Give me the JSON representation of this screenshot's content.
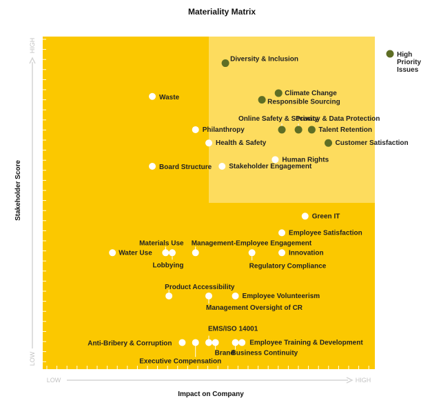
{
  "chart_data": {
    "type": "scatter",
    "title": "Materiality Matrix",
    "xlabel": "Impact on Company",
    "ylabel": "Stakeholder Score",
    "x_low": "LOW",
    "x_high": "HIGH",
    "y_low": "LOW",
    "y_high": "HIGH",
    "xlim": [
      0,
      10
    ],
    "ylim": [
      0,
      10
    ],
    "high_priority_region": {
      "x_min": 5.0,
      "y_min": 5.0
    },
    "colors": {
      "background": "#fbc800",
      "priority_region": "#fddc5e",
      "high_priority_dot": "#5e6e25",
      "standard_dot": "#ffffff"
    },
    "legend": {
      "label": "High Priority Issues",
      "placement": "top-right"
    },
    "points": [
      {
        "name": "Diversity & Inclusion",
        "x": 5.5,
        "y": 9.2,
        "priority": true
      },
      {
        "name": "Climate Change",
        "x": 7.1,
        "y": 8.3,
        "priority": true
      },
      {
        "name": "Responsible Sourcing",
        "x": 6.6,
        "y": 8.1,
        "priority": true
      },
      {
        "name": "Online Safety & Security",
        "x": 7.2,
        "y": 7.2,
        "priority": true
      },
      {
        "name": "Privacy & Data Protection",
        "x": 7.7,
        "y": 7.2,
        "priority": true
      },
      {
        "name": "Talent Retention",
        "x": 8.1,
        "y": 7.2,
        "priority": true
      },
      {
        "name": "Customer Satisfaction",
        "x": 8.6,
        "y": 6.8,
        "priority": true
      },
      {
        "name": "Waste",
        "x": 3.3,
        "y": 8.2,
        "priority": false
      },
      {
        "name": "Philanthropy",
        "x": 4.6,
        "y": 7.2,
        "priority": false
      },
      {
        "name": "Health & Safety",
        "x": 5.0,
        "y": 6.8,
        "priority": false
      },
      {
        "name": "Human Rights",
        "x": 7.0,
        "y": 6.3,
        "priority": false
      },
      {
        "name": "Board Structure",
        "x": 3.3,
        "y": 6.1,
        "priority": false
      },
      {
        "name": "Stakeholder Engagement",
        "x": 5.4,
        "y": 6.1,
        "priority": false
      },
      {
        "name": "Green IT",
        "x": 7.9,
        "y": 4.6,
        "priority": false
      },
      {
        "name": "Employee Satisfaction",
        "x": 7.2,
        "y": 4.1,
        "priority": false
      },
      {
        "name": "Water Use",
        "x": 2.1,
        "y": 3.5,
        "priority": false
      },
      {
        "name": "Materials Use",
        "x": 3.7,
        "y": 3.5,
        "priority": false
      },
      {
        "name": "Lobbying",
        "x": 3.9,
        "y": 3.5,
        "priority": false
      },
      {
        "name": "Management-Employee Engagement",
        "x": 4.6,
        "y": 3.5,
        "priority": false
      },
      {
        "name": "Regulatory Compliance",
        "x": 6.3,
        "y": 3.5,
        "priority": false
      },
      {
        "name": "Innovation",
        "x": 7.2,
        "y": 3.5,
        "priority": false
      },
      {
        "name": "Product Accessibility",
        "x": 3.8,
        "y": 2.2,
        "priority": false
      },
      {
        "name": "Management Oversight of CR",
        "x": 5.0,
        "y": 2.2,
        "priority": false
      },
      {
        "name": "Employee Volunteerism",
        "x": 5.8,
        "y": 2.2,
        "priority": false
      },
      {
        "name": "Anti-Bribery & Corruption",
        "x": 4.2,
        "y": 0.8,
        "priority": false
      },
      {
        "name": "Executive Compensation",
        "x": 4.6,
        "y": 0.8,
        "priority": false
      },
      {
        "name": "EMS/ISO 14001",
        "x": 5.0,
        "y": 0.8,
        "priority": false
      },
      {
        "name": "Brand",
        "x": 5.2,
        "y": 0.8,
        "priority": false
      },
      {
        "name": "Business Continuity",
        "x": 5.8,
        "y": 0.8,
        "priority": false
      },
      {
        "name": "Employee Training & Development",
        "x": 6.0,
        "y": 0.8,
        "priority": false
      }
    ]
  }
}
